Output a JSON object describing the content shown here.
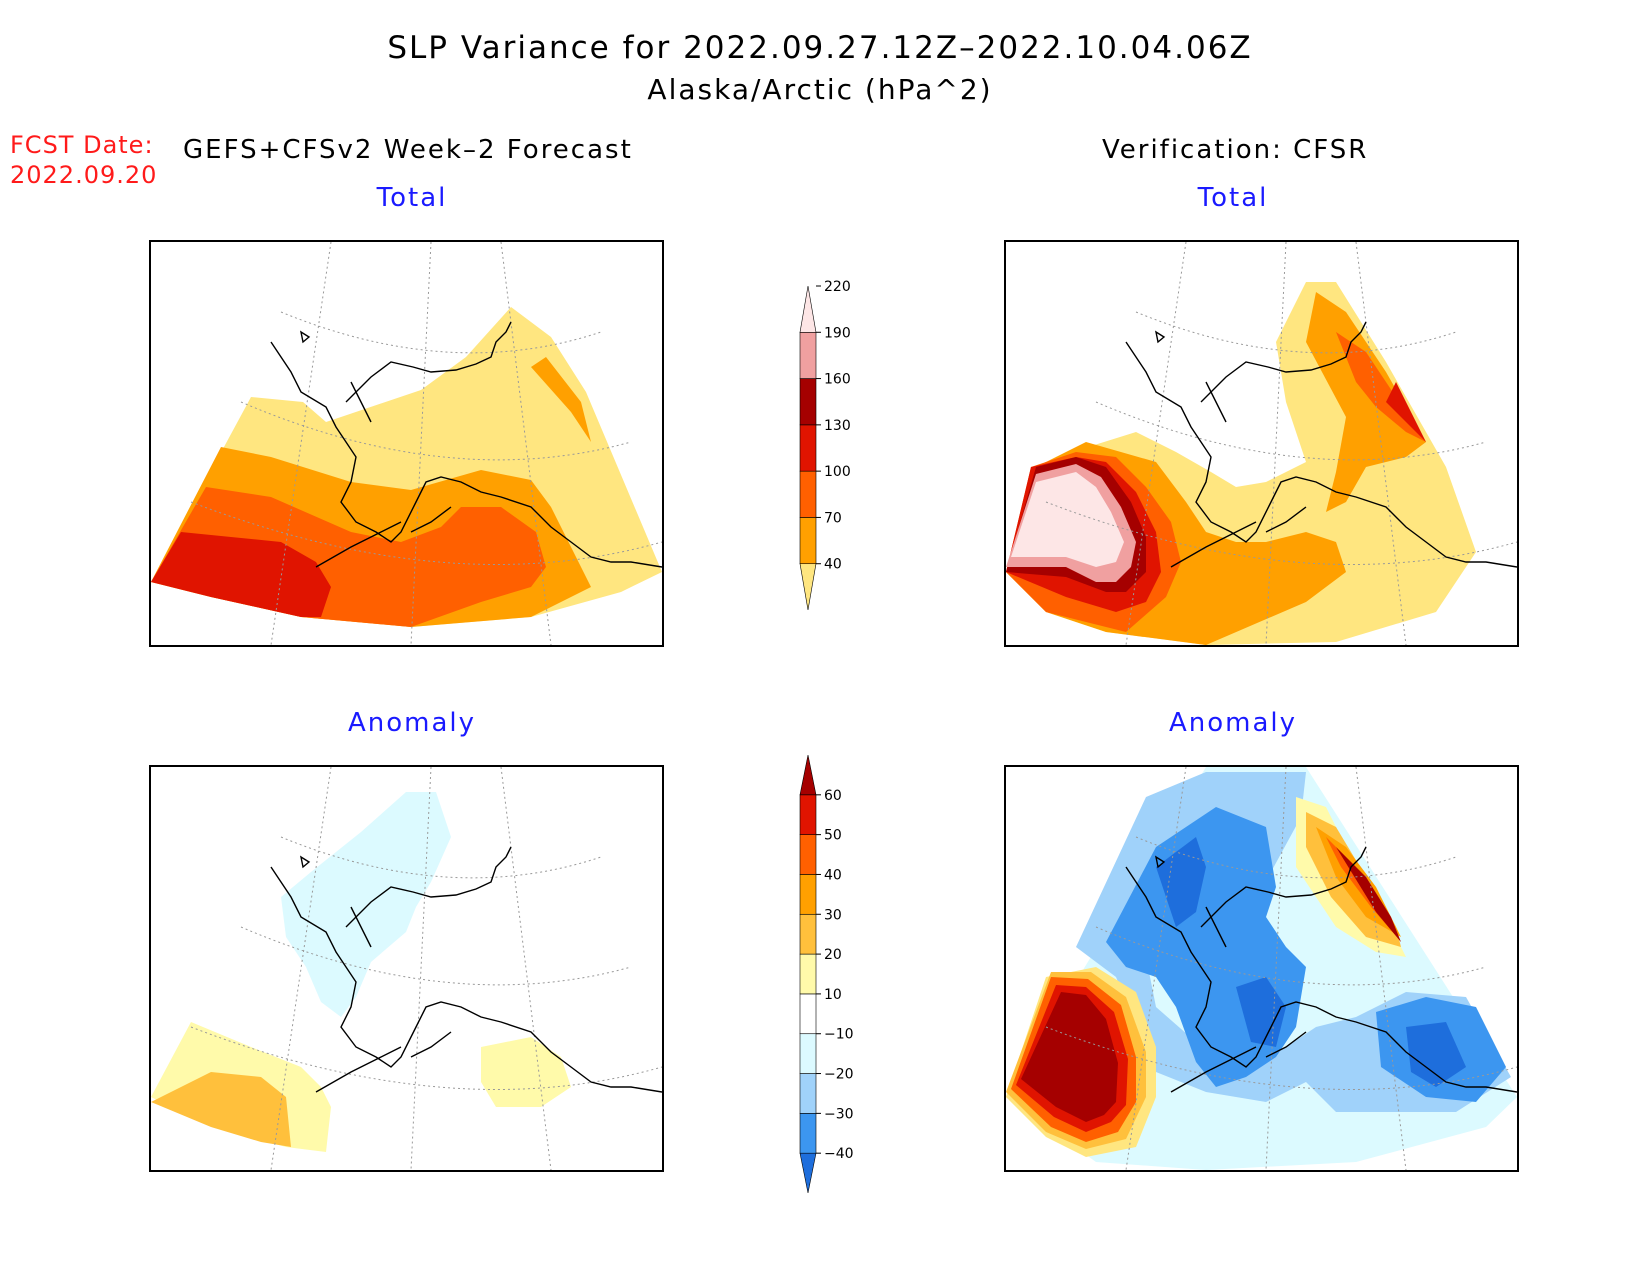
{
  "header": {
    "title": "SLP Variance for 2022.09.27.12Z–2022.10.04.06Z",
    "subtitle": "Alaska/Arctic (hPa^2)"
  },
  "fcst": {
    "label": "FCST Date:",
    "date": "2022.09.20"
  },
  "sections": {
    "forecast": "GEFS+CFSv2 Week–2 Forecast",
    "verification": "Verification: CFSR"
  },
  "panels": {
    "forecast_total": {
      "title": "Total"
    },
    "verification_total": {
      "title": "Total"
    },
    "forecast_anomaly": {
      "title": "Anomaly"
    },
    "verification_anomaly": {
      "title": "Anomaly"
    }
  },
  "colorbars": {
    "total": {
      "levels": [
        "40",
        "70",
        "100",
        "130",
        "160",
        "190",
        "220"
      ],
      "colors": [
        "#ffe680",
        "#ffa000",
        "#ff6000",
        "#e01400",
        "#a50000",
        "#f0a0a0",
        "#fde6e6"
      ]
    },
    "anomaly": {
      "levels": [
        "−40",
        "−30",
        "−20",
        "−10",
        "10",
        "20",
        "30",
        "40",
        "50",
        "60"
      ],
      "colors": [
        "#1e6edc",
        "#3c96f0",
        "#a0d2fa",
        "#dcfaff",
        "#ffffff",
        "#fffaaa",
        "#ffc03c",
        "#ffa000",
        "#ff6000",
        "#e01400",
        "#a50000"
      ]
    }
  },
  "colors": {
    "panel_title": "#1a1aff",
    "fcst_date": "#ff1a1a"
  }
}
